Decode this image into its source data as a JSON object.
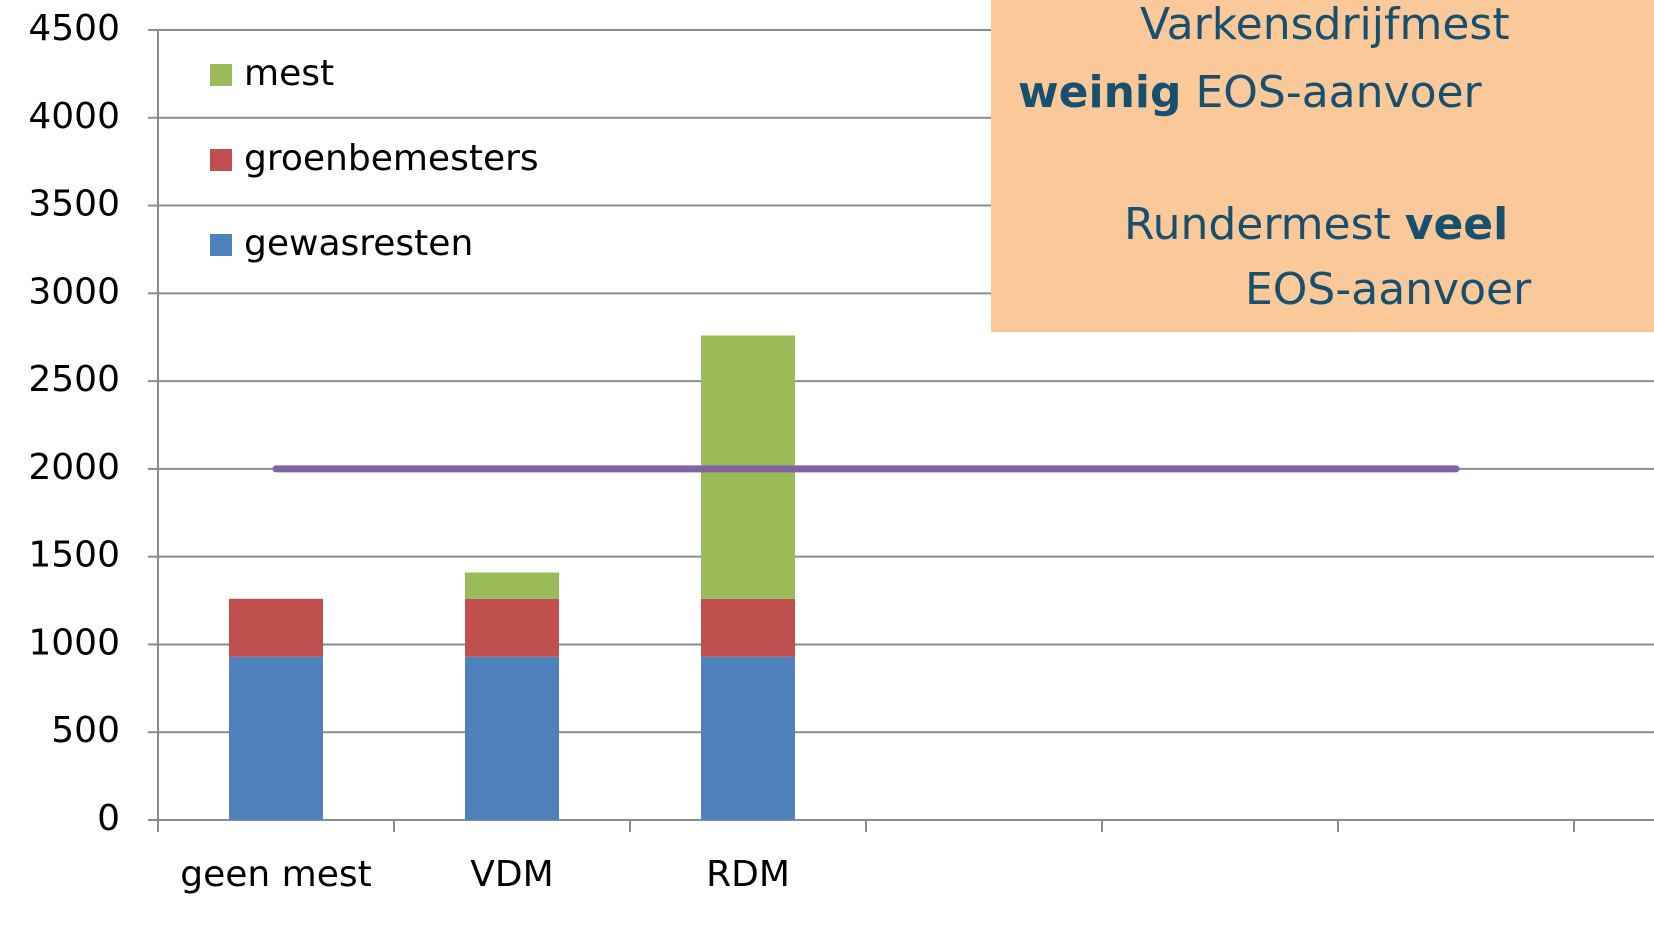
{
  "chart_data": {
    "type": "bar",
    "stacked": true,
    "categories": [
      "geen mest",
      "VDM",
      "RDM",
      null,
      null,
      null,
      null
    ],
    "series": [
      {
        "name": "gewasresten",
        "color": "#4f81bd",
        "values": [
          930,
          930,
          930,
          null,
          null,
          null,
          null
        ]
      },
      {
        "name": "groenbemesters",
        "color": "#c0504d",
        "values": [
          330,
          330,
          330,
          null,
          null,
          null,
          null
        ]
      },
      {
        "name": "mest",
        "color": "#9bbb59",
        "values": [
          null,
          150,
          1500,
          null,
          null,
          null,
          null
        ]
      }
    ],
    "reference_line": {
      "color": "#8064a2",
      "values": [
        2000,
        2000,
        2000,
        2000,
        2000,
        2000,
        null
      ]
    },
    "ylim": [
      0,
      4500
    ],
    "yticks": [
      0,
      500,
      1000,
      1500,
      2000,
      2500,
      3000,
      3500,
      4000,
      4500
    ],
    "grid": true,
    "annotation": {
      "lines": [
        [
          {
            "text": "Varkensdrijfmest",
            "bold": false
          }
        ],
        [
          {
            "text": "weinig",
            "bold": true
          },
          {
            "text": " EOS-aanvoer",
            "bold": false
          }
        ],
        [
          {
            "text": "Rundermest ",
            "bold": false
          },
          {
            "text": "veel",
            "bold": true
          }
        ],
        [
          {
            "text": "EOS-aanvoer",
            "bold": false
          }
        ]
      ],
      "color": "#fbc899"
    }
  }
}
